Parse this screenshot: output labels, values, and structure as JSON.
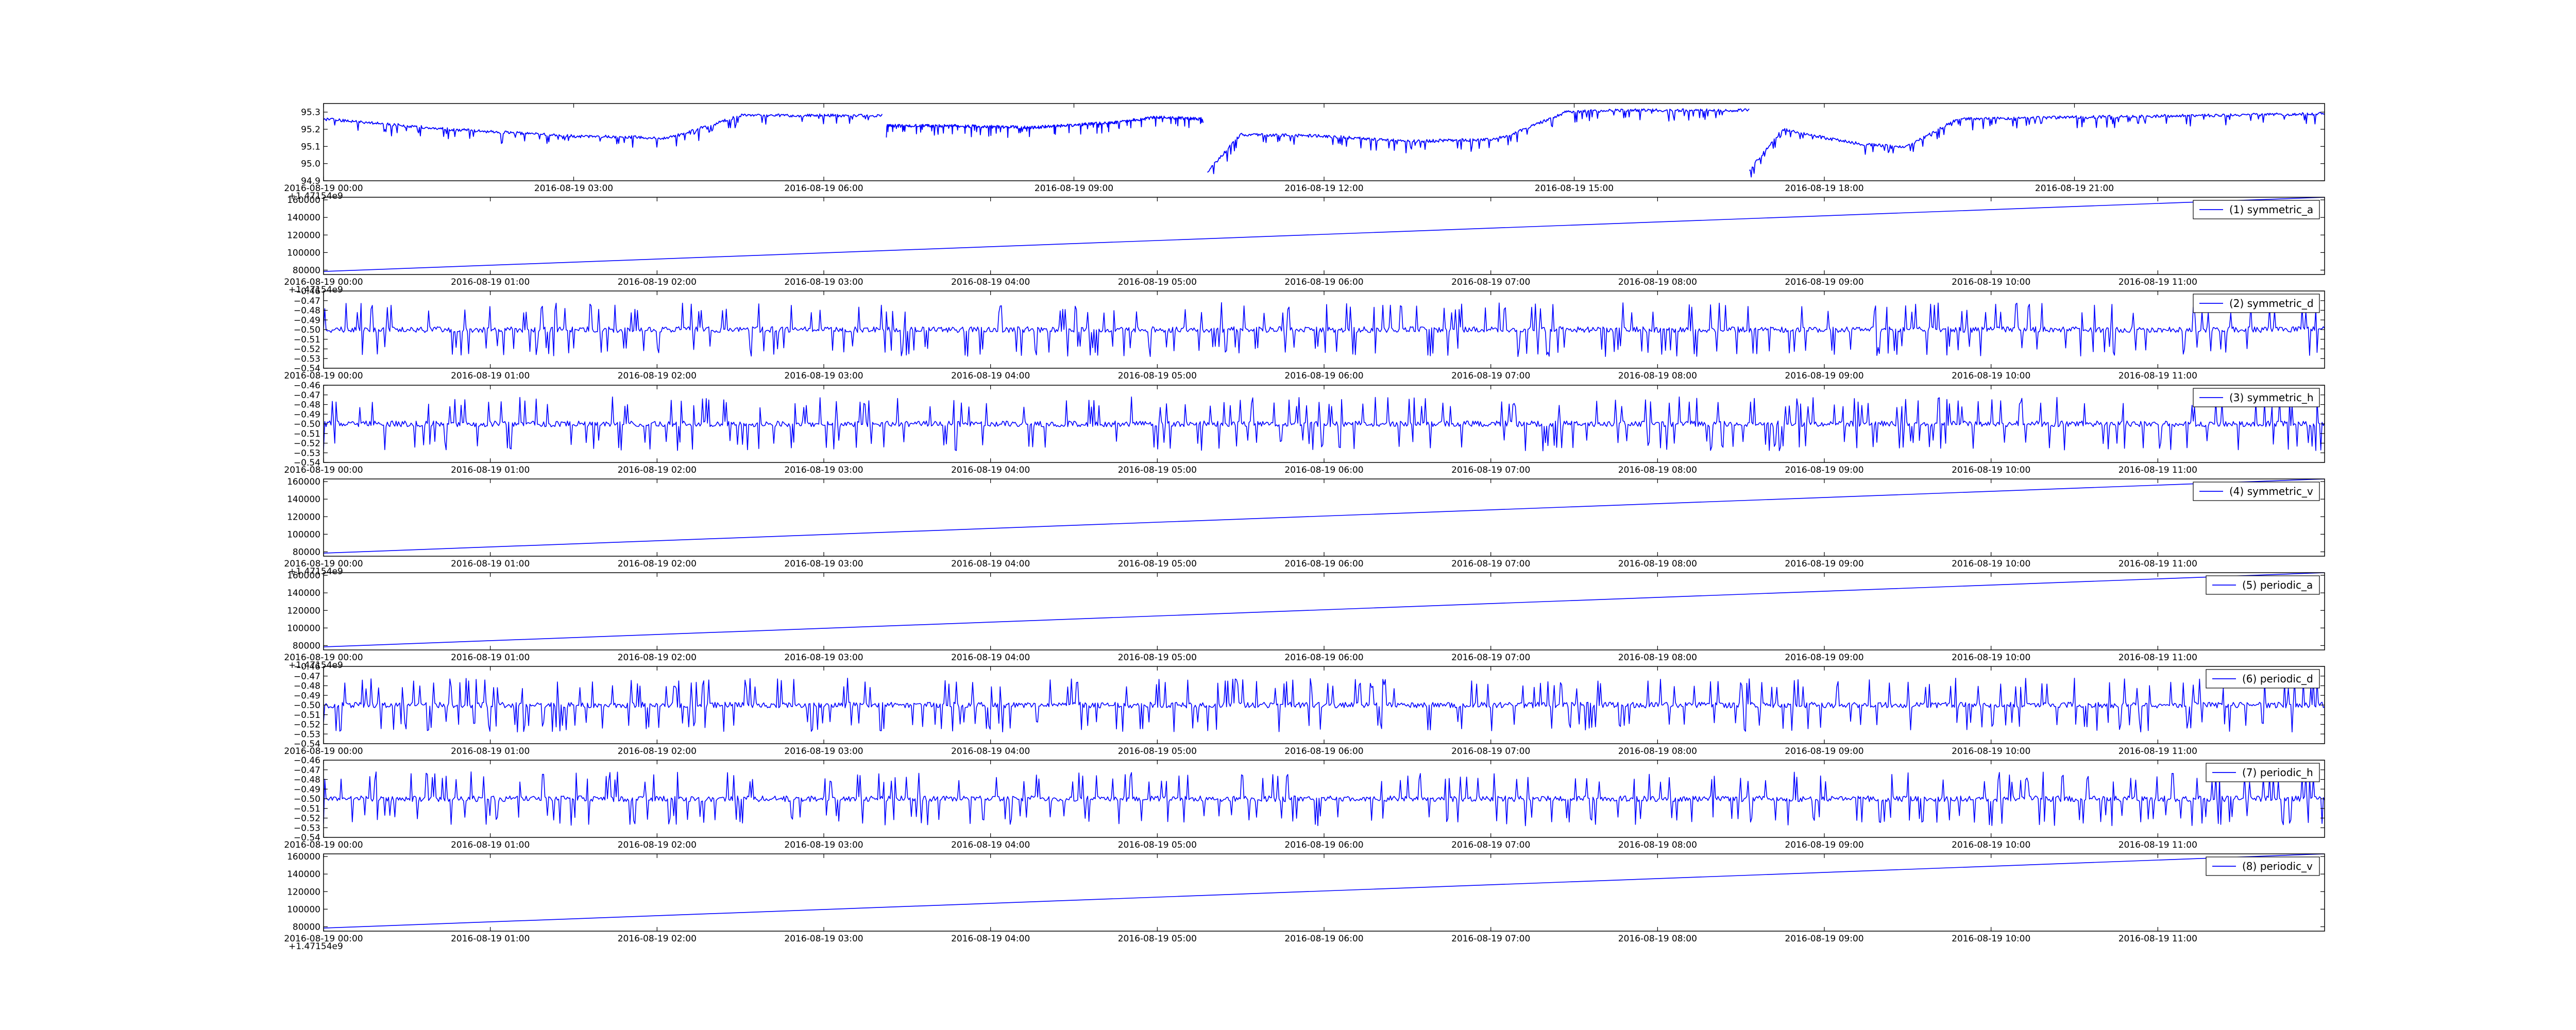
{
  "chart_data": [
    {
      "type": "line",
      "color": "#0000ff",
      "style": "noisy-segments",
      "ylim": [
        94.9,
        95.35
      ],
      "yticks": [
        "95.3",
        "95.2",
        "95.1",
        "95.0",
        "94.9"
      ],
      "ytick_values": [
        95.3,
        95.2,
        95.1,
        95.0,
        94.9
      ],
      "xlim_hours": [
        0,
        24
      ],
      "xticks": [
        "2016-08-19 00:00",
        "2016-08-19 03:00",
        "2016-08-19 06:00",
        "2016-08-19 09:00",
        "2016-08-19 12:00",
        "2016-08-19 15:00",
        "2016-08-19 18:00",
        "2016-08-19 21:00"
      ],
      "xtick_hours": [
        0,
        3,
        6,
        9,
        12,
        15,
        18,
        21
      ],
      "offset_text": "+1.47154e9",
      "legend": "",
      "series": [
        {
          "x": [
            0,
            1.5,
            3,
            4.1,
            4.3,
            5,
            6.7
          ],
          "y": [
            95.26,
            95.2,
            95.16,
            95.15,
            95.17,
            95.28,
            95.28
          ]
        },
        {
          "x": [
            6.75,
            7.5,
            8.5,
            9.5,
            10,
            10.55
          ],
          "y": [
            95.22,
            95.22,
            95.21,
            95.24,
            95.27,
            95.26
          ]
        },
        {
          "x": [
            10.6,
            11,
            12,
            13,
            14,
            14.2,
            14.9,
            15.5,
            16.5,
            17.1
          ],
          "y": [
            94.95,
            95.17,
            95.16,
            95.13,
            95.14,
            95.16,
            95.3,
            95.31,
            95.31,
            95.31
          ]
        },
        {
          "x": [
            17.1,
            17.5,
            18,
            18.5,
            19,
            19.6,
            21,
            22.5,
            24
          ],
          "y": [
            94.96,
            95.2,
            95.15,
            95.11,
            95.1,
            95.26,
            95.27,
            95.28,
            95.29
          ]
        }
      ]
    },
    {
      "type": "line",
      "color": "#0000ff",
      "style": "linear",
      "ylim": [
        75000,
        163000
      ],
      "yticks": [
        "160000",
        "140000",
        "120000",
        "100000",
        "80000"
      ],
      "ytick_values": [
        160000,
        140000,
        120000,
        100000,
        80000
      ],
      "xlim_hours": [
        0,
        12
      ],
      "xticks": [
        "2016-08-19 00:00",
        "2016-08-19 01:00",
        "2016-08-19 02:00",
        "2016-08-19 03:00",
        "2016-08-19 04:00",
        "2016-08-19 05:00",
        "2016-08-19 06:00",
        "2016-08-19 07:00",
        "2016-08-19 08:00",
        "2016-08-19 09:00",
        "2016-08-19 10:00",
        "2016-08-19 11:00"
      ],
      "xtick_hours": [
        0,
        1,
        2,
        3,
        4,
        5,
        6,
        7,
        8,
        9,
        10,
        11
      ],
      "offset_text": "+1.47154e9",
      "legend": "(1) symmetric_a",
      "series": [
        {
          "x": [
            0,
            12
          ],
          "y": [
            78500,
            163000
          ]
        }
      ]
    },
    {
      "type": "line",
      "color": "#0000ff",
      "style": "spiky",
      "ylim": [
        -0.54,
        -0.46
      ],
      "yticks": [
        "−0.46",
        "−0.47",
        "−0.48",
        "−0.49",
        "−0.50",
        "−0.51",
        "−0.52",
        "−0.53",
        "−0.54"
      ],
      "ytick_values": [
        -0.46,
        -0.47,
        -0.48,
        -0.49,
        -0.5,
        -0.51,
        -0.52,
        -0.53,
        -0.54
      ],
      "xlim_hours": [
        0,
        12
      ],
      "xticks": [
        "2016-08-19 00:00",
        "2016-08-19 01:00",
        "2016-08-19 02:00",
        "2016-08-19 03:00",
        "2016-08-19 04:00",
        "2016-08-19 05:00",
        "2016-08-19 06:00",
        "2016-08-19 07:00",
        "2016-08-19 08:00",
        "2016-08-19 09:00",
        "2016-08-19 10:00",
        "2016-08-19 11:00"
      ],
      "xtick_hours": [
        0,
        1,
        2,
        3,
        4,
        5,
        6,
        7,
        8,
        9,
        10,
        11
      ],
      "offset_text": "",
      "legend": "(2) symmetric_d",
      "baseline": -0.5,
      "spike_high": -0.472,
      "spike_low": -0.528
    },
    {
      "type": "line",
      "color": "#0000ff",
      "style": "spiky",
      "ylim": [
        -0.54,
        -0.46
      ],
      "yticks": [
        "−0.46",
        "−0.47",
        "−0.48",
        "−0.49",
        "−0.50",
        "−0.51",
        "−0.52",
        "−0.53",
        "−0.54"
      ],
      "ytick_values": [
        -0.46,
        -0.47,
        -0.48,
        -0.49,
        -0.5,
        -0.51,
        -0.52,
        -0.53,
        -0.54
      ],
      "xlim_hours": [
        0,
        12
      ],
      "xticks": [
        "2016-08-19 00:00",
        "2016-08-19 01:00",
        "2016-08-19 02:00",
        "2016-08-19 03:00",
        "2016-08-19 04:00",
        "2016-08-19 05:00",
        "2016-08-19 06:00",
        "2016-08-19 07:00",
        "2016-08-19 08:00",
        "2016-08-19 09:00",
        "2016-08-19 10:00",
        "2016-08-19 11:00"
      ],
      "xtick_hours": [
        0,
        1,
        2,
        3,
        4,
        5,
        6,
        7,
        8,
        9,
        10,
        11
      ],
      "offset_text": "",
      "legend": "(3) symmetric_h",
      "baseline": -0.5,
      "spike_high": -0.472,
      "spike_low": -0.528
    },
    {
      "type": "line",
      "color": "#0000ff",
      "style": "linear",
      "ylim": [
        75000,
        163000
      ],
      "yticks": [
        "160000",
        "140000",
        "120000",
        "100000",
        "80000"
      ],
      "ytick_values": [
        160000,
        140000,
        120000,
        100000,
        80000
      ],
      "xlim_hours": [
        0,
        12
      ],
      "xticks": [
        "2016-08-19 00:00",
        "2016-08-19 01:00",
        "2016-08-19 02:00",
        "2016-08-19 03:00",
        "2016-08-19 04:00",
        "2016-08-19 05:00",
        "2016-08-19 06:00",
        "2016-08-19 07:00",
        "2016-08-19 08:00",
        "2016-08-19 09:00",
        "2016-08-19 10:00",
        "2016-08-19 11:00"
      ],
      "xtick_hours": [
        0,
        1,
        2,
        3,
        4,
        5,
        6,
        7,
        8,
        9,
        10,
        11
      ],
      "offset_text": "+1.47154e9",
      "legend": "(4) symmetric_v",
      "series": [
        {
          "x": [
            0,
            12
          ],
          "y": [
            78500,
            163000
          ]
        }
      ]
    },
    {
      "type": "line",
      "color": "#0000ff",
      "style": "linear",
      "ylim": [
        75000,
        163000
      ],
      "yticks": [
        "160000",
        "140000",
        "120000",
        "100000",
        "80000"
      ],
      "ytick_values": [
        160000,
        140000,
        120000,
        100000,
        80000
      ],
      "xlim_hours": [
        0,
        12
      ],
      "xticks": [
        "2016-08-19 00:00",
        "2016-08-19 01:00",
        "2016-08-19 02:00",
        "2016-08-19 03:00",
        "2016-08-19 04:00",
        "2016-08-19 05:00",
        "2016-08-19 06:00",
        "2016-08-19 07:00",
        "2016-08-19 08:00",
        "2016-08-19 09:00",
        "2016-08-19 10:00",
        "2016-08-19 11:00"
      ],
      "xtick_hours": [
        0,
        1,
        2,
        3,
        4,
        5,
        6,
        7,
        8,
        9,
        10,
        11
      ],
      "offset_text": "+1.47154e9",
      "legend": "(5) periodic_a",
      "series": [
        {
          "x": [
            0,
            12
          ],
          "y": [
            78500,
            163000
          ]
        }
      ]
    },
    {
      "type": "line",
      "color": "#0000ff",
      "style": "spiky",
      "ylim": [
        -0.54,
        -0.46
      ],
      "yticks": [
        "−0.46",
        "−0.47",
        "−0.48",
        "−0.49",
        "−0.50",
        "−0.51",
        "−0.52",
        "−0.53",
        "−0.54"
      ],
      "ytick_values": [
        -0.46,
        -0.47,
        -0.48,
        -0.49,
        -0.5,
        -0.51,
        -0.52,
        -0.53,
        -0.54
      ],
      "xlim_hours": [
        0,
        12
      ],
      "xticks": [
        "2016-08-19 00:00",
        "2016-08-19 01:00",
        "2016-08-19 02:00",
        "2016-08-19 03:00",
        "2016-08-19 04:00",
        "2016-08-19 05:00",
        "2016-08-19 06:00",
        "2016-08-19 07:00",
        "2016-08-19 08:00",
        "2016-08-19 09:00",
        "2016-08-19 10:00",
        "2016-08-19 11:00"
      ],
      "xtick_hours": [
        0,
        1,
        2,
        3,
        4,
        5,
        6,
        7,
        8,
        9,
        10,
        11
      ],
      "offset_text": "",
      "legend": "(6) periodic_d",
      "baseline": -0.5,
      "spike_high": -0.472,
      "spike_low": -0.528
    },
    {
      "type": "line",
      "color": "#0000ff",
      "style": "spiky",
      "ylim": [
        -0.54,
        -0.46
      ],
      "yticks": [
        "−0.46",
        "−0.47",
        "−0.48",
        "−0.49",
        "−0.50",
        "−0.51",
        "−0.52",
        "−0.53",
        "−0.54"
      ],
      "ytick_values": [
        -0.46,
        -0.47,
        -0.48,
        -0.49,
        -0.5,
        -0.51,
        -0.52,
        -0.53,
        -0.54
      ],
      "xlim_hours": [
        0,
        12
      ],
      "xticks": [
        "2016-08-19 00:00",
        "2016-08-19 01:00",
        "2016-08-19 02:00",
        "2016-08-19 03:00",
        "2016-08-19 04:00",
        "2016-08-19 05:00",
        "2016-08-19 06:00",
        "2016-08-19 07:00",
        "2016-08-19 08:00",
        "2016-08-19 09:00",
        "2016-08-19 10:00",
        "2016-08-19 11:00"
      ],
      "xtick_hours": [
        0,
        1,
        2,
        3,
        4,
        5,
        6,
        7,
        8,
        9,
        10,
        11
      ],
      "offset_text": "",
      "legend": "(7) periodic_h",
      "baseline": -0.5,
      "spike_high": -0.472,
      "spike_low": -0.528
    },
    {
      "type": "line",
      "color": "#0000ff",
      "style": "linear",
      "ylim": [
        75000,
        163000
      ],
      "yticks": [
        "160000",
        "140000",
        "120000",
        "100000",
        "80000"
      ],
      "ytick_values": [
        160000,
        140000,
        120000,
        100000,
        80000
      ],
      "xlim_hours": [
        0,
        12
      ],
      "xticks": [
        "2016-08-19 00:00",
        "2016-08-19 01:00",
        "2016-08-19 02:00",
        "2016-08-19 03:00",
        "2016-08-19 04:00",
        "2016-08-19 05:00",
        "2016-08-19 06:00",
        "2016-08-19 07:00",
        "2016-08-19 08:00",
        "2016-08-19 09:00",
        "2016-08-19 10:00",
        "2016-08-19 11:00"
      ],
      "xtick_hours": [
        0,
        1,
        2,
        3,
        4,
        5,
        6,
        7,
        8,
        9,
        10,
        11
      ],
      "offset_text": "+1.47154e9",
      "legend": "(8) periodic_v",
      "series": [
        {
          "x": [
            0,
            12
          ],
          "y": [
            78500,
            163000
          ]
        }
      ]
    }
  ]
}
